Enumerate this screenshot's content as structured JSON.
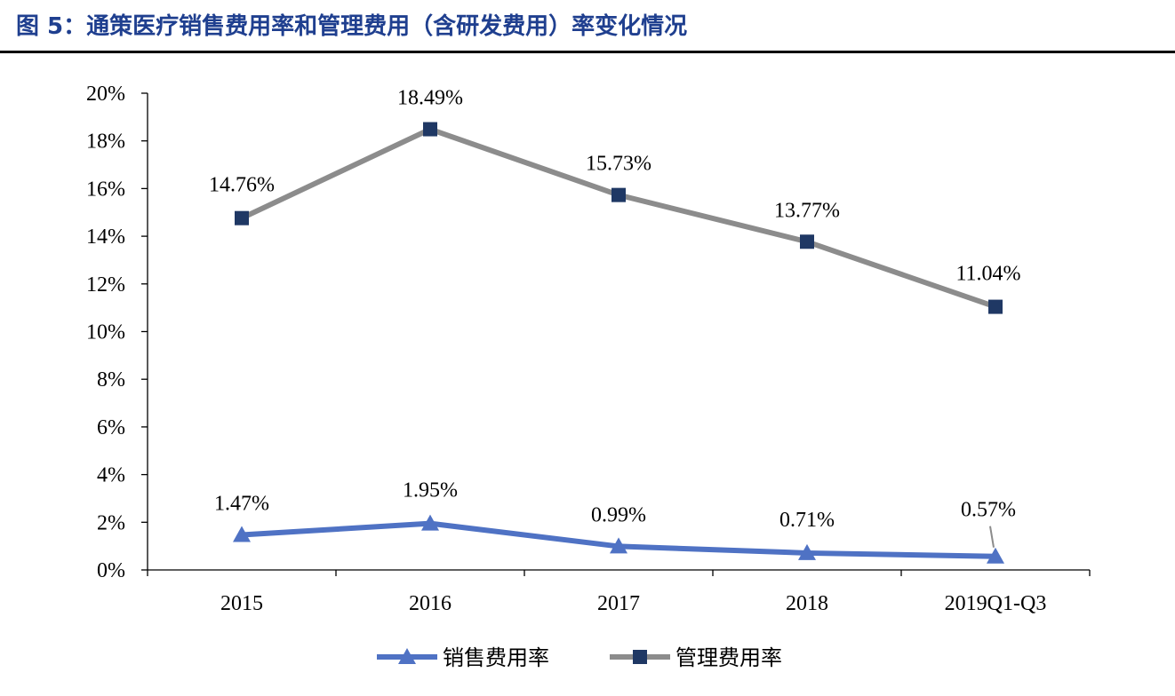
{
  "figure": {
    "title": "图 5：通策医疗销售费用率和管理费用（含研发费用）率变化情况",
    "title_color": "#1f3f8f",
    "rule_color": "#000000"
  },
  "chart_data": {
    "type": "line",
    "categories": [
      "2015",
      "2016",
      "2017",
      "2018",
      "2019Q1-Q3"
    ],
    "ylim": [
      0,
      20
    ],
    "yticks": [
      0,
      2,
      4,
      6,
      8,
      10,
      12,
      14,
      16,
      18,
      20
    ],
    "ytick_labels": [
      "0%",
      "2%",
      "4%",
      "6%",
      "8%",
      "10%",
      "12%",
      "14%",
      "16%",
      "18%",
      "20%"
    ],
    "grid": false,
    "legend_position": "bottom",
    "series": [
      {
        "name": "销售费用率",
        "values": [
          1.47,
          1.95,
          0.99,
          0.71,
          0.57
        ],
        "labels": [
          "1.47%",
          "1.95%",
          "0.99%",
          "0.71%",
          "0.57%"
        ],
        "line_color": "#4f72c4",
        "marker": "triangle",
        "marker_color": "#4f72c4"
      },
      {
        "name": "管理费用率",
        "values": [
          14.76,
          18.49,
          15.73,
          13.77,
          11.04
        ],
        "labels": [
          "14.76%",
          "18.49%",
          "15.73%",
          "13.77%",
          "11.04%"
        ],
        "line_color": "#8c8c8c",
        "marker": "square",
        "marker_color": "#1f3864"
      }
    ]
  }
}
